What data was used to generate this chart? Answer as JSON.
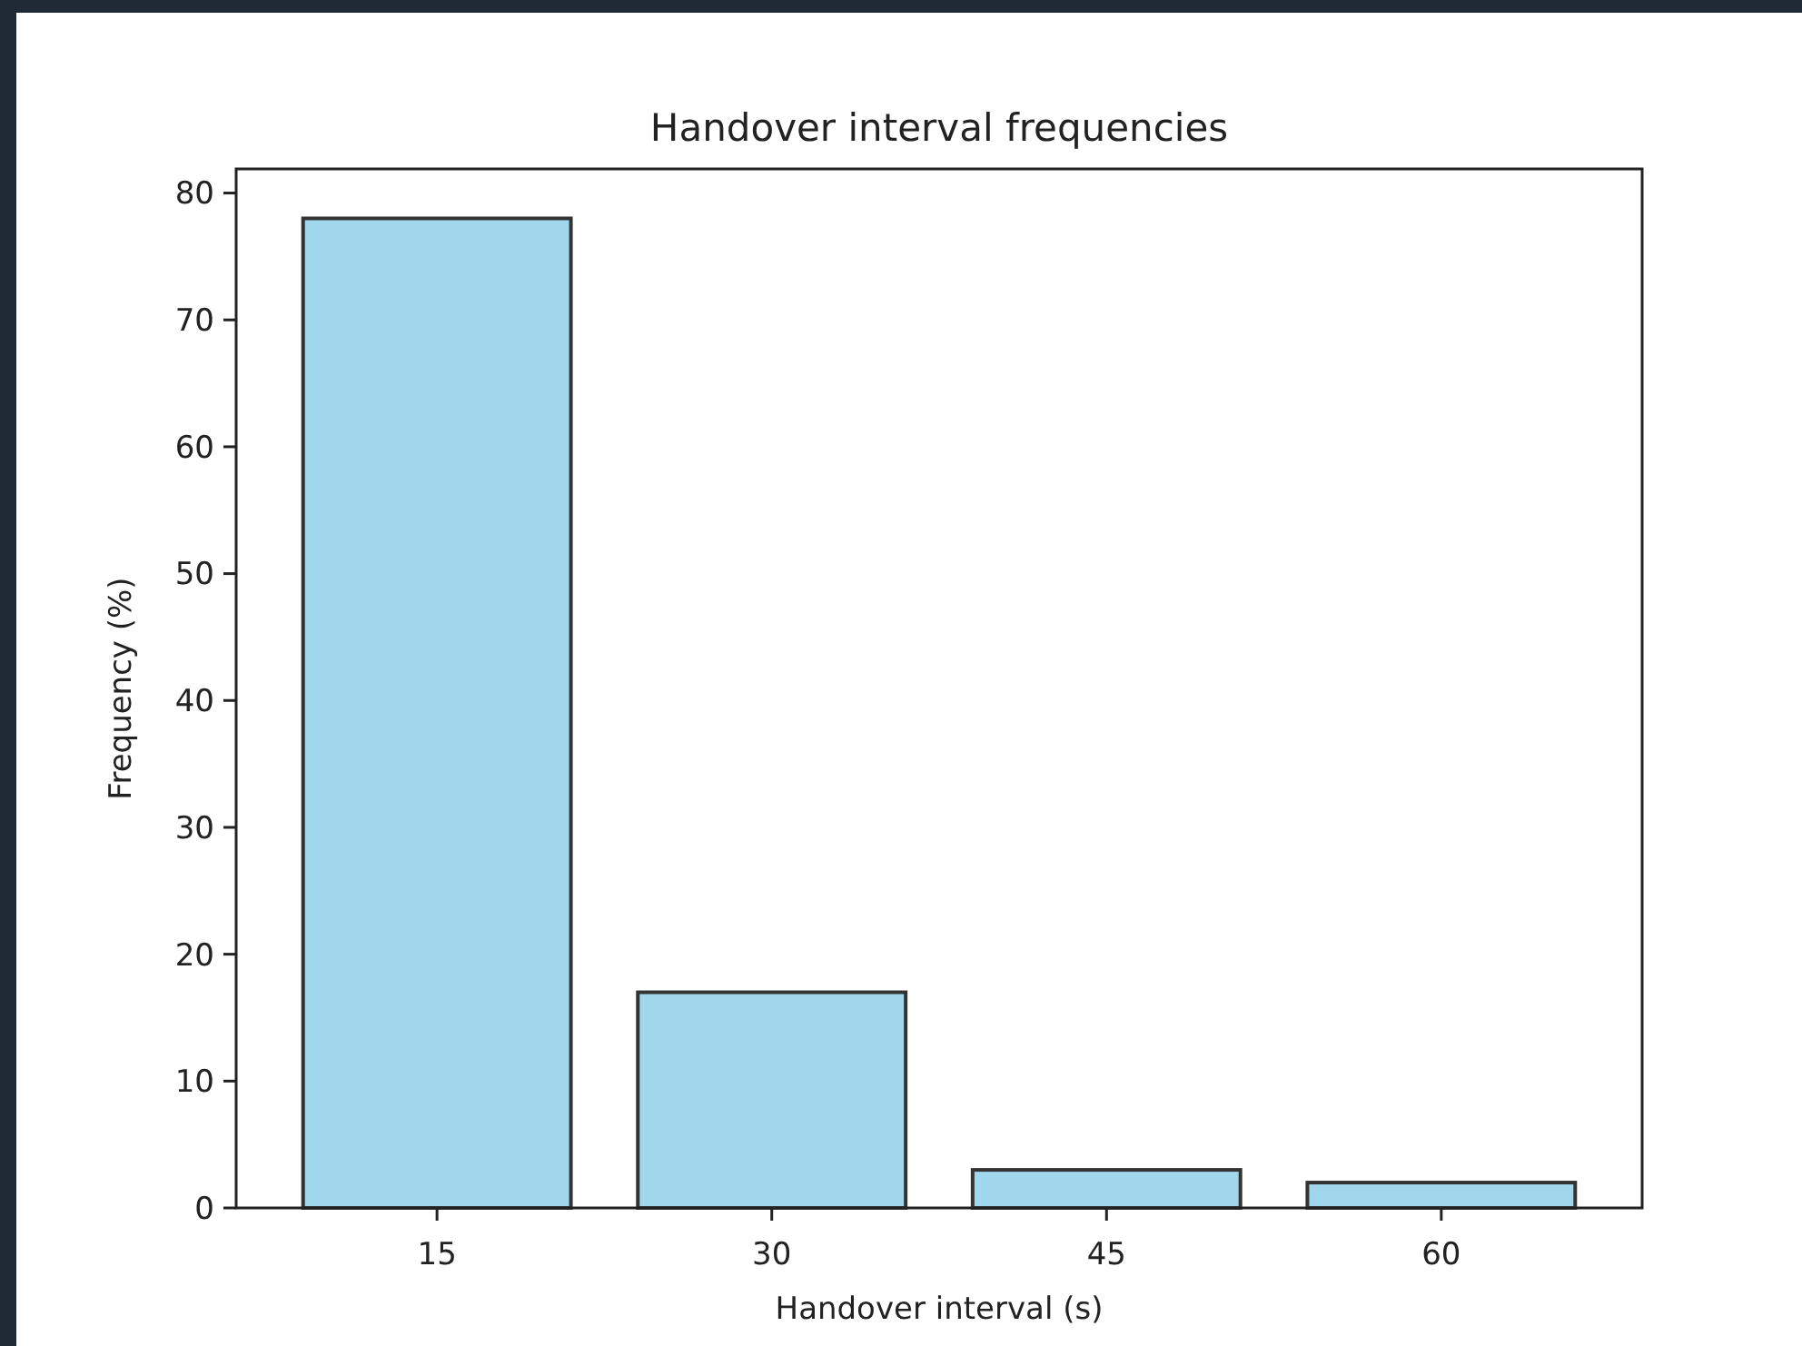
{
  "chart_data": {
    "type": "bar",
    "title": "Handover interval frequencies",
    "xlabel": "Handover interval (s)",
    "ylabel": "Frequency (%)",
    "categories": [
      "15",
      "30",
      "45",
      "60"
    ],
    "values": [
      78,
      17,
      3,
      2
    ],
    "color": "#a0d7ed",
    "ylim": [
      0,
      81.9
    ],
    "yticks": [
      0,
      10,
      20,
      30,
      40,
      50,
      60,
      70,
      80
    ],
    "grid": false
  }
}
